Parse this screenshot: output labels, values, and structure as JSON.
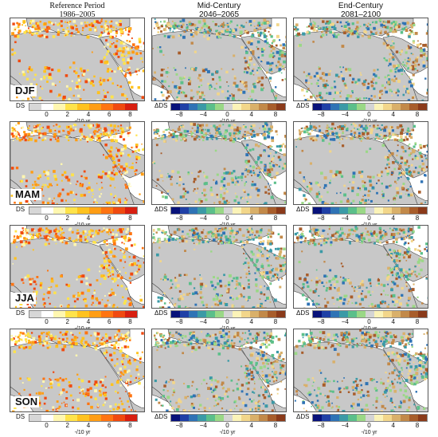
{
  "columns": [
    {
      "line1": "Reference Period",
      "line2": "1986–2005"
    },
    {
      "line1": "Mid-Century",
      "line2": "2046–2065"
    },
    {
      "line1": "End-Century",
      "line2": "2081–2100"
    }
  ],
  "seasons": [
    "DJF",
    "MAM",
    "JJA",
    "SON"
  ],
  "legend_ref": {
    "label": "DS",
    "ticks": [
      "0",
      "2",
      "4",
      "6",
      "8"
    ],
    "unit": "-/10 yr",
    "colors": [
      "#d7d7d7",
      "#ffffff",
      "#fff7b0",
      "#ffe34a",
      "#ffc21f",
      "#ff9d14",
      "#ff7412",
      "#f04a10",
      "#d81f10"
    ]
  },
  "legend_diff": {
    "label": "ΔDS",
    "ticks": [
      "−8",
      "−4",
      "0",
      "4",
      "8"
    ],
    "unit": "-/10 yr",
    "colors": [
      "#08127a",
      "#1f40a6",
      "#2f73b5",
      "#3b9aa6",
      "#5bbf8a",
      "#9ad886",
      "#d4d4d4",
      "#fbf3b8",
      "#f2d68a",
      "#d9b06a",
      "#c28949",
      "#a85d2b",
      "#8a3a1a"
    ]
  },
  "map_palette": {
    "land": "#c8c8c8",
    "sea": "#ffffff",
    "coast": "#444444"
  }
}
